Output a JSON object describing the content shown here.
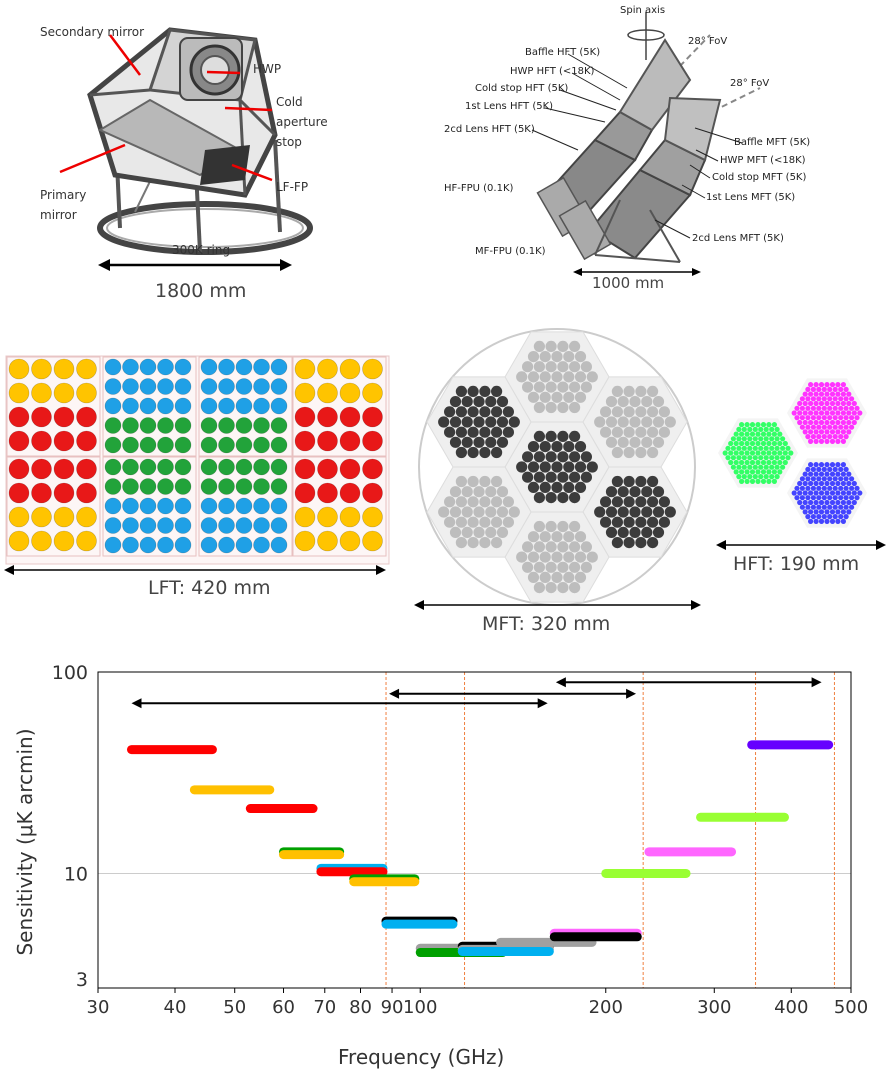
{
  "lft_mirror_figure": {
    "labels": {
      "secondary_mirror": "Secondary mirror",
      "hwp": "HWP",
      "cold_aperture_stop": "Cold aperture stop",
      "primary_mirror": "Primary mirror",
      "lf_fp": "LF-FP",
      "ring": "300K ring"
    },
    "dimension": "1800 mm"
  },
  "mhft_figure": {
    "spin_axis": "Spin axis",
    "fov": "28° FoV",
    "hft_labels": [
      "Baffle HFT (5K)",
      "HWP HFT (<18K)",
      "Cold stop HFT (5K)",
      "1st Lens HFT (5K)",
      "2cd Lens HFT (5K)",
      "HF-FPU (0.1K)",
      "MF-FPU (0.1K)"
    ],
    "mft_labels": [
      "Baffle MFT (5K)",
      "HWP MFT (<18K)",
      "Cold stop MFT (5K)",
      "1st Lens MFT (5K)",
      "2cd Lens MFT (5K)"
    ],
    "dimension": "1000 mm"
  },
  "focal_planes": {
    "lft_label": "LFT: 420 mm",
    "mft_label": "MFT: 320 mm",
    "hft_label": "HFT: 190 mm"
  },
  "chart_data": {
    "type": "bar",
    "xlabel": "Frequency (GHz)",
    "ylabel": "Sensitivity (μK arcmin)",
    "xscale": "log",
    "yscale": "log",
    "xlim": [
      30,
      500
    ],
    "ylim": [
      2.7,
      100
    ],
    "x_ticks": [
      30,
      40,
      50,
      60,
      70,
      80,
      90,
      100,
      200,
      300,
      400,
      500
    ],
    "x_tick_labels": [
      "30",
      "40",
      "50",
      "60",
      "70",
      "80",
      "90",
      "100",
      "200",
      "300",
      "400",
      "500"
    ],
    "y_ticks": [
      3,
      10,
      100
    ],
    "y_tick_labels": [
      "3",
      "10",
      "100"
    ],
    "grid": "horizontal at 10",
    "bands": [
      {
        "x0": 34,
        "x1": 46,
        "y": 41.2,
        "color": "#ff0000"
      },
      {
        "x0": 43,
        "x1": 57,
        "y": 26,
        "color": "#ffc000"
      },
      {
        "x0": 53,
        "x1": 67,
        "y": 21,
        "color": "#ff0000"
      },
      {
        "x0": 60,
        "x1": 74,
        "y": 12.8,
        "color": "#00a000"
      },
      {
        "x0": 60,
        "x1": 74,
        "y": 12.4,
        "color": "#ffc000"
      },
      {
        "x0": 69,
        "x1": 87,
        "y": 10.6,
        "color": "#00b0f0"
      },
      {
        "x0": 69,
        "x1": 87,
        "y": 10.2,
        "color": "#ff0000"
      },
      {
        "x0": 78,
        "x1": 98,
        "y": 9.4,
        "color": "#00a000"
      },
      {
        "x0": 78,
        "x1": 98,
        "y": 9.1,
        "color": "#ffc000"
      },
      {
        "x0": 88,
        "x1": 113,
        "y": 5.8,
        "color": "#000000"
      },
      {
        "x0": 88,
        "x1": 113,
        "y": 5.6,
        "color": "#00b0f0"
      },
      {
        "x0": 100,
        "x1": 136,
        "y": 4.25,
        "color": "#a0a0a0"
      },
      {
        "x0": 100,
        "x1": 136,
        "y": 4.05,
        "color": "#00a000"
      },
      {
        "x0": 117,
        "x1": 162,
        "y": 4.35,
        "color": "#000000"
      },
      {
        "x0": 117,
        "x1": 162,
        "y": 4.2,
        "color": "#a0a0a0"
      },
      {
        "x0": 117,
        "x1": 162,
        "y": 4.1,
        "color": "#00b0f0"
      },
      {
        "x0": 135,
        "x1": 190,
        "y": 4.55,
        "color": "#a0a0a0"
      },
      {
        "x0": 165,
        "x1": 225,
        "y": 5.05,
        "color": "#ff66ff"
      },
      {
        "x0": 165,
        "x1": 225,
        "y": 4.85,
        "color": "#000000"
      },
      {
        "x0": 200,
        "x1": 270,
        "y": 10,
        "color": "#99ff33"
      },
      {
        "x0": 235,
        "x1": 320,
        "y": 12.8,
        "color": "#ff66ff"
      },
      {
        "x0": 285,
        "x1": 390,
        "y": 19,
        "color": "#99ff33"
      },
      {
        "x0": 345,
        "x1": 460,
        "y": 43.5,
        "color": "#6600ff"
      }
    ],
    "telescope_ranges": [
      {
        "x0": 34,
        "x1": 161,
        "y": 70
      },
      {
        "x0": 89,
        "x1": 224,
        "y": 78
      },
      {
        "x0": 166,
        "x1": 448,
        "y": 89
      }
    ],
    "band_edge_lines": [
      88,
      118,
      230,
      350,
      470
    ]
  }
}
